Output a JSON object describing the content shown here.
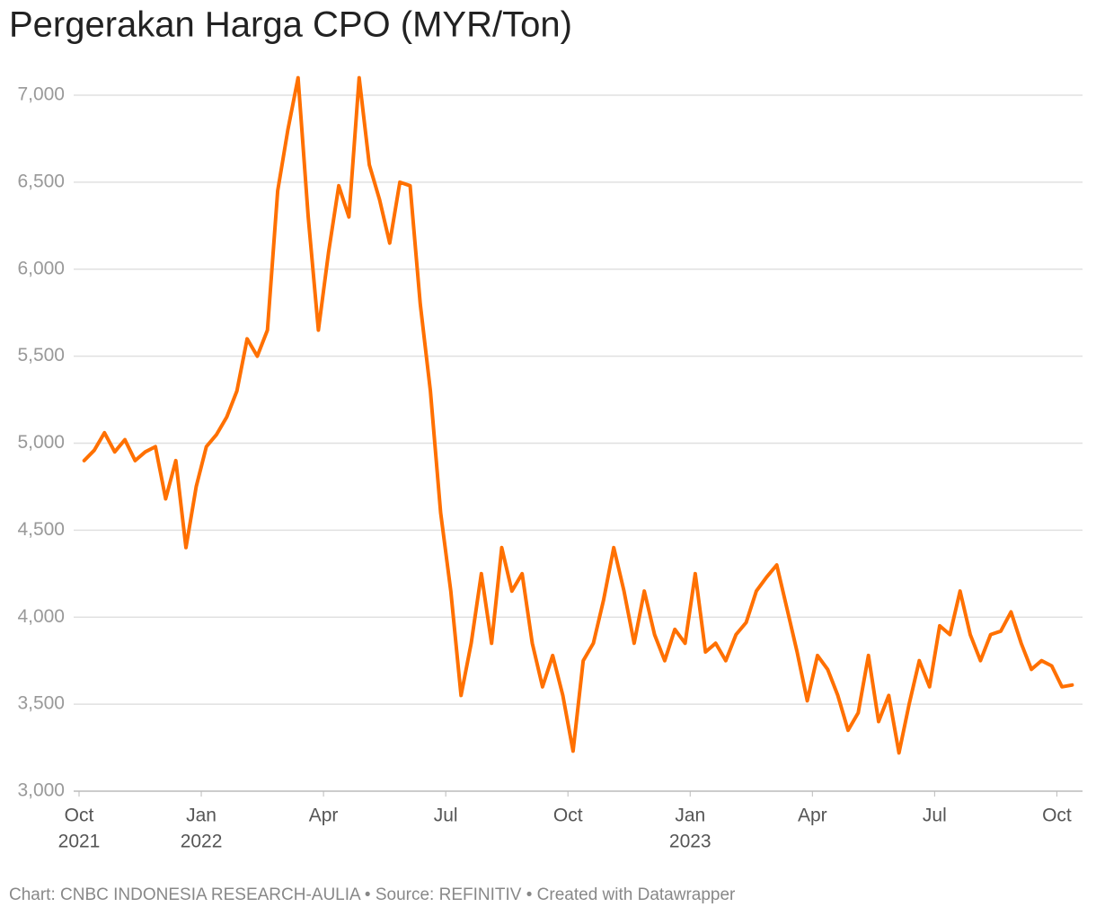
{
  "chart_data": {
    "type": "line",
    "title": "Pergerakan Harga CPO (MYR/Ton)",
    "footer": "Chart: CNBC INDONESIA RESEARCH-AULIA • Source: REFINITIV • Created with Datawrapper",
    "x": [
      "2021-10",
      "2021-10",
      "2021-10",
      "2021-10",
      "2021-11",
      "2021-11",
      "2021-11",
      "2021-11",
      "2021-12",
      "2021-12",
      "2021-12",
      "2021-12",
      "2022-01",
      "2022-01",
      "2022-01",
      "2022-01",
      "2022-02",
      "2022-02",
      "2022-02",
      "2022-02",
      "2022-03",
      "2022-03",
      "2022-03",
      "2022-03",
      "2022-04",
      "2022-04",
      "2022-04",
      "2022-04",
      "2022-05",
      "2022-05",
      "2022-05",
      "2022-05",
      "2022-06",
      "2022-06",
      "2022-06",
      "2022-06",
      "2022-07",
      "2022-07",
      "2022-07",
      "2022-07",
      "2022-08",
      "2022-08",
      "2022-08",
      "2022-08",
      "2022-09",
      "2022-09",
      "2022-09",
      "2022-09",
      "2022-10",
      "2022-10",
      "2022-10",
      "2022-10",
      "2022-11",
      "2022-11",
      "2022-11",
      "2022-11",
      "2022-12",
      "2022-12",
      "2022-12",
      "2022-12",
      "2023-01",
      "2023-01",
      "2023-01",
      "2023-01",
      "2023-02",
      "2023-02",
      "2023-02",
      "2023-02",
      "2023-03",
      "2023-03",
      "2023-03",
      "2023-03",
      "2023-04",
      "2023-04",
      "2023-04",
      "2023-04",
      "2023-05",
      "2023-05",
      "2023-05",
      "2023-05",
      "2023-06",
      "2023-06",
      "2023-06",
      "2023-06",
      "2023-07",
      "2023-07",
      "2023-07",
      "2023-07",
      "2023-08",
      "2023-08",
      "2023-08",
      "2023-08",
      "2023-09",
      "2023-09",
      "2023-09",
      "2023-09",
      "2023-10",
      "2023-10"
    ],
    "series": [
      {
        "name": "CPO",
        "color": "#ff7000",
        "values": [
          4900,
          4960,
          5060,
          4950,
          5020,
          4900,
          4950,
          4980,
          4680,
          4900,
          4400,
          4750,
          4980,
          5050,
          5150,
          5300,
          5600,
          5500,
          5650,
          6450,
          6800,
          7100,
          6300,
          5650,
          6100,
          6480,
          6300,
          7100,
          6600,
          6400,
          6150,
          6500,
          6480,
          5800,
          5300,
          4600,
          4150,
          3550,
          3850,
          4250,
          3850,
          4400,
          4150,
          4250,
          3850,
          3600,
          3780,
          3550,
          3230,
          3750,
          3850,
          4100,
          4400,
          4150,
          3850,
          4150,
          3900,
          3750,
          3930,
          3850,
          4250,
          3800,
          3850,
          3750,
          3900,
          3970,
          4150,
          4230,
          4300,
          4050,
          3800,
          3520,
          3780,
          3700,
          3550,
          3350,
          3450,
          3780,
          3400,
          3550,
          3220,
          3500,
          3750,
          3600,
          3950,
          3900,
          4150,
          3900,
          3750,
          3900,
          3920,
          4030,
          3850,
          3700,
          3750,
          3720,
          3600,
          3610
        ]
      }
    ],
    "ylim": [
      3000,
      7000
    ],
    "yticks": [
      {
        "value": 3000,
        "label": "3,000"
      },
      {
        "value": 3500,
        "label": "3,500"
      },
      {
        "value": 4000,
        "label": "4,000"
      },
      {
        "value": 4500,
        "label": "4,500"
      },
      {
        "value": 5000,
        "label": "5,000"
      },
      {
        "value": 5500,
        "label": "5,500"
      },
      {
        "value": 6000,
        "label": "6,000"
      },
      {
        "value": 6500,
        "label": "6,500"
      },
      {
        "value": 7000,
        "label": "7,000"
      }
    ],
    "xticks": [
      {
        "value": "2021-10",
        "label": "Oct"
      },
      {
        "value": "2022-01",
        "label": "Jan"
      },
      {
        "value": "2022-04",
        "label": "Apr"
      },
      {
        "value": "2022-07",
        "label": "Jul"
      },
      {
        "value": "2022-10",
        "label": "Oct"
      },
      {
        "value": "2023-01",
        "label": "Jan"
      },
      {
        "value": "2023-04",
        "label": "Apr"
      },
      {
        "value": "2023-07",
        "label": "Jul"
      },
      {
        "value": "2023-10",
        "label": "Oct"
      }
    ],
    "xtick_years": [
      {
        "value": "2021-10",
        "label": "2021"
      },
      {
        "value": "2022-01",
        "label": "2022"
      },
      {
        "value": "2023-01",
        "label": "2023"
      }
    ],
    "grid": true
  }
}
